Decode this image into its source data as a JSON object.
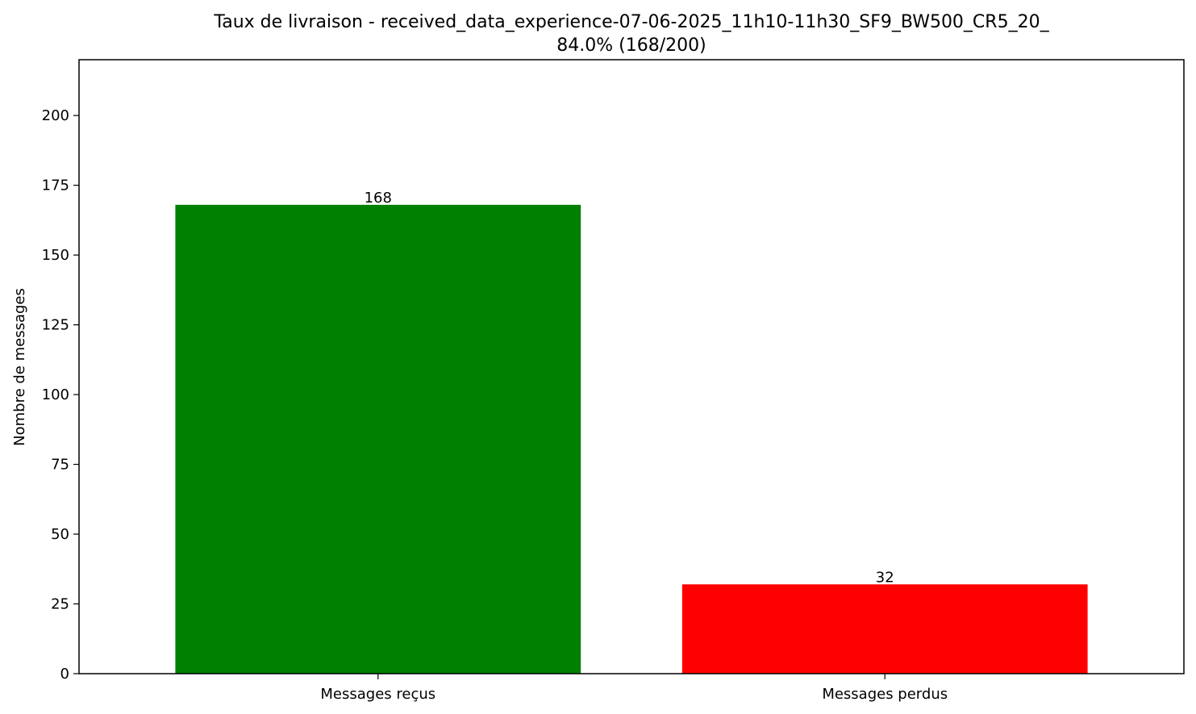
{
  "chart_data": {
    "type": "bar",
    "title": "Taux de livraison - received_data_experience-07-06-2025_11h10-11h30_SF9_BW500_CR5_20_",
    "subtitle": "84.0% (168/200)",
    "categories": [
      "Messages reçus",
      "Messages perdus"
    ],
    "values": [
      168,
      32
    ],
    "data_labels": [
      "168",
      "32"
    ],
    "colors": [
      "#008000",
      "#ff0000"
    ],
    "xlabel": "",
    "ylabel": "Nombre de messages",
    "ylim": [
      0,
      220
    ],
    "yticks": [
      0,
      25,
      50,
      75,
      100,
      125,
      150,
      175,
      200
    ],
    "ytick_labels": [
      "0",
      "25",
      "50",
      "75",
      "100",
      "125",
      "150",
      "175",
      "200"
    ],
    "grid": false,
    "legend": "none"
  }
}
